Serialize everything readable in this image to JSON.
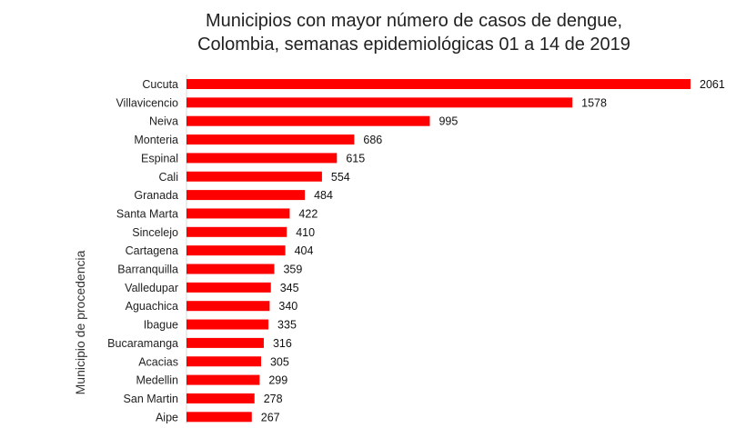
{
  "chart_data": {
    "type": "bar",
    "orientation": "horizontal",
    "title_lines": [
      "Municipios con mayor número de casos de dengue,",
      "Colombia, semanas epidemiológicas 01 a 14 de 2019"
    ],
    "ylabel": "Municipio de procedencia",
    "xlabel": "",
    "categories": [
      "Cucuta",
      "Villavicencio",
      "Neiva",
      "Monteria",
      "Espinal",
      "Cali",
      "Granada",
      "Santa Marta",
      "Sincelejo",
      "Cartagena",
      "Barranquilla",
      "Valledupar",
      "Aguachica",
      "Ibague",
      "Bucaramanga",
      "Acacias",
      "Medellin",
      "San Martin",
      "Aipe"
    ],
    "values": [
      2061,
      1578,
      995,
      686,
      615,
      554,
      484,
      422,
      410,
      404,
      359,
      345,
      340,
      335,
      316,
      305,
      299,
      278,
      267
    ],
    "value_labels": [
      "2061",
      "1578",
      "995",
      "686",
      "615",
      "554",
      "484",
      "422",
      "410",
      "404",
      "359",
      "345",
      "340",
      "335",
      "316",
      "305",
      "299",
      "278",
      "267"
    ],
    "xlim": [
      0,
      2061
    ],
    "grid": false,
    "legend": "none",
    "bar_color": "#ff0000"
  }
}
